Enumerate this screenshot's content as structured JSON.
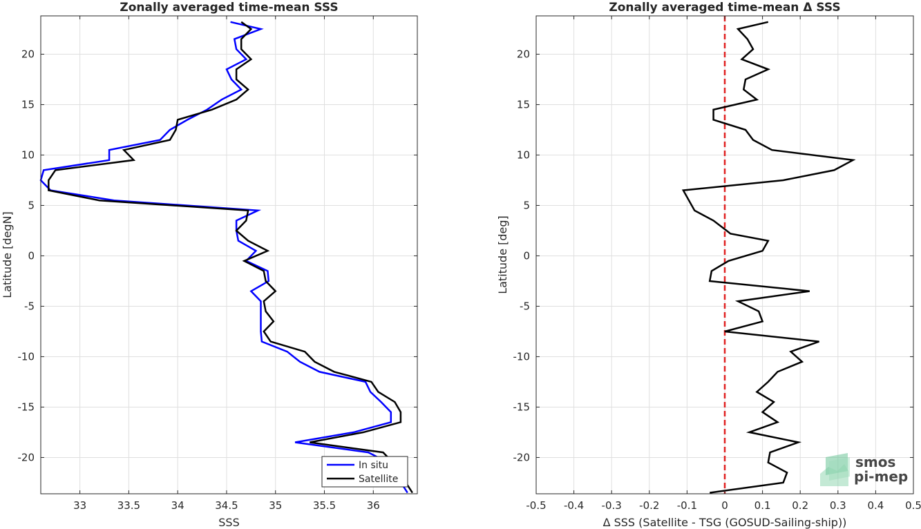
{
  "chart_data": [
    {
      "type": "line",
      "title": "Zonally averaged time-mean SSS",
      "xlabel": "SSS",
      "ylabel": "Latitude [degN]",
      "xlim": [
        32.6,
        36.45
      ],
      "ylim": [
        -23.6,
        23.8
      ],
      "xticks": [
        33,
        33.5,
        34,
        34.5,
        35,
        35.5,
        36
      ],
      "xtick_labels": [
        "33",
        "33.5",
        "34",
        "34.5",
        "35",
        "35.5",
        "36"
      ],
      "yticks": [
        -20,
        -15,
        -10,
        -5,
        0,
        5,
        10,
        15,
        20
      ],
      "ytick_labels": [
        "-20",
        "-15",
        "-10",
        "-5",
        "0",
        "5",
        "10",
        "15",
        "20"
      ],
      "grid": true,
      "legend_position": "bottom-right",
      "series": [
        {
          "name": "In situ",
          "color": "#0000ff",
          "points": [
            [
              34.54,
              23.2
            ],
            [
              34.85,
              22.5
            ],
            [
              34.58,
              21.5
            ],
            [
              34.6,
              20.5
            ],
            [
              34.7,
              19.5
            ],
            [
              34.5,
              18.5
            ],
            [
              34.55,
              17.5
            ],
            [
              34.65,
              16.5
            ],
            [
              34.45,
              15.5
            ],
            [
              34.3,
              14.5
            ],
            [
              34.1,
              13.5
            ],
            [
              33.92,
              12.5
            ],
            [
              33.82,
              11.5
            ],
            [
              33.3,
              10.5
            ],
            [
              33.3,
              9.5
            ],
            [
              32.63,
              8.5
            ],
            [
              32.6,
              7.5
            ],
            [
              32.7,
              6.5
            ],
            [
              33.35,
              5.5
            ],
            [
              34.82,
              4.5
            ],
            [
              34.6,
              3.5
            ],
            [
              34.6,
              2.5
            ],
            [
              34.62,
              1.5
            ],
            [
              34.8,
              0.5
            ],
            [
              34.7,
              -0.5
            ],
            [
              34.92,
              -1.5
            ],
            [
              34.93,
              -2.5
            ],
            [
              34.75,
              -3.5
            ],
            [
              34.85,
              -4.5
            ],
            [
              34.85,
              -5.5
            ],
            [
              34.85,
              -6.5
            ],
            [
              34.85,
              -7.5
            ],
            [
              34.86,
              -8.5
            ],
            [
              35.12,
              -9.5
            ],
            [
              35.25,
              -10.5
            ],
            [
              35.45,
              -11.5
            ],
            [
              35.92,
              -12.5
            ],
            [
              35.97,
              -13.5
            ],
            [
              36.08,
              -14.5
            ],
            [
              36.18,
              -15.5
            ],
            [
              36.18,
              -16.5
            ],
            [
              35.8,
              -17.5
            ],
            [
              35.2,
              -18.5
            ],
            [
              35.95,
              -19.5
            ],
            [
              36.15,
              -20.5
            ],
            [
              36.35,
              -23.5
            ]
          ]
        },
        {
          "name": "Satellite",
          "color": "#000000",
          "points": [
            [
              34.65,
              23.2
            ],
            [
              34.75,
              22.5
            ],
            [
              34.65,
              21.5
            ],
            [
              34.65,
              20.5
            ],
            [
              34.75,
              19.5
            ],
            [
              34.6,
              18.5
            ],
            [
              34.6,
              17.5
            ],
            [
              34.72,
              16.5
            ],
            [
              34.6,
              15.5
            ],
            [
              34.35,
              14.5
            ],
            [
              34.0,
              13.5
            ],
            [
              33.98,
              12.5
            ],
            [
              33.92,
              11.5
            ],
            [
              33.45,
              10.5
            ],
            [
              33.55,
              9.5
            ],
            [
              32.75,
              8.5
            ],
            [
              32.68,
              7.5
            ],
            [
              32.68,
              6.5
            ],
            [
              33.2,
              5.5
            ],
            [
              34.72,
              4.5
            ],
            [
              34.7,
              3.5
            ],
            [
              34.6,
              2.5
            ],
            [
              34.72,
              1.5
            ],
            [
              34.92,
              0.5
            ],
            [
              34.68,
              -0.5
            ],
            [
              34.88,
              -1.5
            ],
            [
              34.9,
              -2.5
            ],
            [
              35.0,
              -3.5
            ],
            [
              34.88,
              -4.5
            ],
            [
              34.9,
              -5.5
            ],
            [
              34.98,
              -6.5
            ],
            [
              34.88,
              -7.5
            ],
            [
              34.95,
              -8.5
            ],
            [
              35.3,
              -9.5
            ],
            [
              35.4,
              -10.5
            ],
            [
              35.6,
              -11.5
            ],
            [
              35.98,
              -12.5
            ],
            [
              36.05,
              -13.5
            ],
            [
              36.22,
              -14.5
            ],
            [
              36.28,
              -15.5
            ],
            [
              36.28,
              -16.5
            ],
            [
              35.9,
              -17.5
            ],
            [
              35.35,
              -18.5
            ],
            [
              36.1,
              -19.5
            ],
            [
              36.2,
              -20.5
            ],
            [
              36.4,
              -23.5
            ]
          ]
        }
      ]
    },
    {
      "type": "line",
      "title": "Zonally averaged time-mean Δ SSS",
      "xlabel": "Δ SSS (Satellite - TSG (GOSUD-Sailing-ship))",
      "ylabel": "Latitude [deg]",
      "xlim": [
        -0.5,
        0.5
      ],
      "ylim": [
        -23.6,
        23.8
      ],
      "xticks": [
        -0.5,
        -0.4,
        -0.3,
        -0.2,
        -0.1,
        0,
        0.1,
        0.2,
        0.3,
        0.4,
        0.5
      ],
      "xtick_labels": [
        "-0.5",
        "-0.4",
        "-0.3",
        "-0.2",
        "-0.1",
        "0",
        "0.1",
        "0.2",
        "0.3",
        "0.4",
        "0.5"
      ],
      "yticks": [
        -20,
        -15,
        -10,
        -5,
        0,
        5,
        10,
        15,
        20
      ],
      "ytick_labels": [
        "-20",
        "-15",
        "-10",
        "-5",
        "0",
        "5",
        "10",
        "15",
        "20"
      ],
      "grid": true,
      "reference_line": {
        "x": 0,
        "color": "#e02020",
        "style": "dashed"
      },
      "series": [
        {
          "color": "#000000",
          "points": [
            [
              0.115,
              23.2
            ],
            [
              0.035,
              22.5
            ],
            [
              0.06,
              21.5
            ],
            [
              0.075,
              20.5
            ],
            [
              0.045,
              19.5
            ],
            [
              0.115,
              18.5
            ],
            [
              0.055,
              17.5
            ],
            [
              0.05,
              16.5
            ],
            [
              0.085,
              15.5
            ],
            [
              -0.03,
              14.5
            ],
            [
              -0.03,
              13.5
            ],
            [
              0.055,
              12.5
            ],
            [
              0.075,
              11.5
            ],
            [
              0.125,
              10.5
            ],
            [
              0.34,
              9.5
            ],
            [
              0.29,
              8.5
            ],
            [
              0.155,
              7.5
            ],
            [
              -0.11,
              6.5
            ],
            [
              -0.08,
              4.5
            ],
            [
              -0.03,
              3.5
            ],
            [
              0.005,
              2.5
            ],
            [
              0.015,
              2.2
            ],
            [
              0.115,
              1.5
            ],
            [
              0.1,
              0.5
            ],
            [
              0.01,
              -0.5
            ],
            [
              -0.035,
              -1.5
            ],
            [
              -0.04,
              -2.5
            ],
            [
              0.225,
              -3.5
            ],
            [
              0.035,
              -4.5
            ],
            [
              0.09,
              -5.5
            ],
            [
              0.1,
              -6.5
            ],
            [
              0.0,
              -7.5
            ],
            [
              0.25,
              -8.5
            ],
            [
              0.175,
              -9.5
            ],
            [
              0.205,
              -10.5
            ],
            [
              0.14,
              -11.5
            ],
            [
              0.115,
              -12.5
            ],
            [
              0.085,
              -13.5
            ],
            [
              0.13,
              -14.5
            ],
            [
              0.1,
              -15.5
            ],
            [
              0.14,
              -16.5
            ],
            [
              0.065,
              -17.5
            ],
            [
              0.195,
              -18.5
            ],
            [
              0.12,
              -19.5
            ],
            [
              0.115,
              -20.5
            ],
            [
              0.165,
              -21.5
            ],
            [
              0.155,
              -22.5
            ],
            [
              -0.04,
              -23.5
            ]
          ]
        }
      ]
    }
  ],
  "logo": {
    "line1": "smos",
    "line2": "pi-mep",
    "color": "#5fbf8f"
  }
}
